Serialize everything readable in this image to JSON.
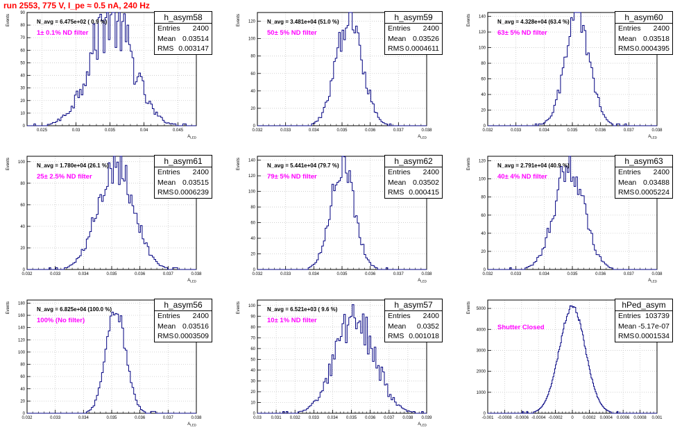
{
  "title": "run 2553,   775 V, I_pe ≈ 0.5 nA, 240 Hz",
  "colors": {
    "line": "#000080",
    "grid": "#c8c8c8",
    "label": "#ff00ff",
    "title": "#ff0000"
  },
  "stats_labels": {
    "entries": "Entries",
    "mean": "Mean",
    "rms": "RMS"
  },
  "chart_data": [
    {
      "type": "histogram",
      "title": "h_asym58",
      "n_avg": "N_avg = 6.475e+02 ( 0.9 %)",
      "label": "1± 0.1% ND filter",
      "entries": "2400",
      "mean": "0.03514",
      "rms": "0.003147",
      "ylabel": "Events",
      "xlabel": "A_LED",
      "xlim": [
        0.0228,
        0.0477
      ],
      "ylim": [
        0,
        90
      ],
      "xticks": [
        "0.025",
        "0.03",
        "0.035",
        "0.04",
        "0.045"
      ],
      "yticks": [
        "0",
        "10",
        "20",
        "30",
        "40",
        "50",
        "60",
        "70",
        "80",
        "90"
      ],
      "xtick_values": [
        0.025,
        0.03,
        0.035,
        0.04,
        0.045
      ],
      "ytick_values": [
        0,
        10,
        20,
        30,
        40,
        50,
        60,
        70,
        80,
        90
      ],
      "peak": 86,
      "center": 0.03514,
      "sigma": 0.003147,
      "bins": 100,
      "noise": 0.3
    },
    {
      "type": "histogram",
      "title": "h_asym59",
      "n_avg": "N_avg = 3.481e+04 (51.0 %)",
      "label": "50± 5% ND filter",
      "entries": "2400",
      "mean": "0.03526",
      "rms": "0.0004611",
      "ylabel": "Events",
      "xlabel": "A_LED",
      "xlim": [
        0.032,
        0.038
      ],
      "ylim": [
        0,
        130
      ],
      "xticks": [
        "0.032",
        "0.033",
        "0.034",
        "0.035",
        "0.036",
        "0.037",
        "0.038"
      ],
      "yticks": [
        "0",
        "20",
        "40",
        "60",
        "80",
        "100",
        "120"
      ],
      "xtick_values": [
        0.032,
        0.033,
        0.034,
        0.035,
        0.036,
        0.037,
        0.038
      ],
      "ytick_values": [
        0,
        20,
        40,
        60,
        80,
        100,
        120
      ],
      "peak": 124,
      "center": 0.03526,
      "sigma": 0.0004611,
      "bins": 100,
      "noise": 0.18
    },
    {
      "type": "histogram",
      "title": "h_asym60",
      "n_avg": "N_avg = 4.328e+04 (63.4 %)",
      "label": "63± 5% ND filter",
      "entries": "2400",
      "mean": "0.03518",
      "rms": "0.0004395",
      "ylabel": "Events",
      "xlabel": "A_LED",
      "xlim": [
        0.032,
        0.038
      ],
      "ylim": [
        0,
        145
      ],
      "xticks": [
        "0.032",
        "0.033",
        "0.034",
        "0.035",
        "0.036",
        "0.037",
        "0.038"
      ],
      "yticks": [
        "0",
        "20",
        "40",
        "60",
        "80",
        "100",
        "120",
        "140"
      ],
      "xtick_values": [
        0.032,
        0.033,
        0.034,
        0.035,
        0.036,
        0.037,
        0.038
      ],
      "ytick_values": [
        0,
        20,
        40,
        60,
        80,
        100,
        120,
        140
      ],
      "peak": 138,
      "center": 0.03518,
      "sigma": 0.0004395,
      "bins": 100,
      "noise": 0.16
    },
    {
      "type": "histogram",
      "title": "h_asym61",
      "n_avg": "N_avg = 1.780e+04 (26.1 %)",
      "label": "25± 2.5% ND filter",
      "entries": "2400",
      "mean": "0.03515",
      "rms": "0.0006239",
      "ylabel": "Events",
      "xlabel": "A_LED",
      "xlim": [
        0.032,
        0.038
      ],
      "ylim": [
        0,
        105
      ],
      "xticks": [
        "0.032",
        "0.033",
        "0.034",
        "0.035",
        "0.036",
        "0.037",
        "0.038"
      ],
      "yticks": [
        "0",
        "20",
        "40",
        "60",
        "80",
        "100"
      ],
      "xtick_values": [
        0.032,
        0.033,
        0.034,
        0.035,
        0.036,
        0.037,
        0.038
      ],
      "ytick_values": [
        0,
        20,
        40,
        60,
        80,
        100
      ],
      "peak": 100,
      "center": 0.03515,
      "sigma": 0.0006239,
      "bins": 100,
      "noise": 0.2
    },
    {
      "type": "histogram",
      "title": "h_asym62",
      "n_avg": "N_avg = 5.441e+04 (79.7 %)",
      "label": "79± 5% ND filter",
      "entries": "2400",
      "mean": "0.03502",
      "rms": "0.000415",
      "ylabel": "Events",
      "xlabel": "A_LED",
      "xlim": [
        0.032,
        0.038
      ],
      "ylim": [
        0,
        145
      ],
      "xticks": [
        "0.032",
        "0.033",
        "0.034",
        "0.035",
        "0.036",
        "0.037",
        "0.038"
      ],
      "yticks": [
        "0",
        "20",
        "40",
        "60",
        "80",
        "100",
        "120",
        "140"
      ],
      "xtick_values": [
        0.032,
        0.033,
        0.034,
        0.035,
        0.036,
        0.037,
        0.038
      ],
      "ytick_values": [
        0,
        20,
        40,
        60,
        80,
        100,
        120,
        140
      ],
      "peak": 136,
      "center": 0.03502,
      "sigma": 0.000415,
      "bins": 100,
      "noise": 0.16
    },
    {
      "type": "histogram",
      "title": "h_asym63",
      "n_avg": "N_avg = 2.791e+04 (40.9 %)",
      "label": "40± 4% ND filter",
      "entries": "2400",
      "mean": "0.03488",
      "rms": "0.0005224",
      "ylabel": "Events",
      "xlabel": "A_LED",
      "xlim": [
        0.032,
        0.038
      ],
      "ylim": [
        0,
        125
      ],
      "xticks": [
        "0.032",
        "0.033",
        "0.034",
        "0.035",
        "0.036",
        "0.037",
        "0.038"
      ],
      "yticks": [
        "0",
        "20",
        "40",
        "60",
        "80",
        "100",
        "120"
      ],
      "xtick_values": [
        0.032,
        0.033,
        0.034,
        0.035,
        0.036,
        0.037,
        0.038
      ],
      "ytick_values": [
        0,
        20,
        40,
        60,
        80,
        100,
        120
      ],
      "peak": 115,
      "center": 0.03488,
      "sigma": 0.0005224,
      "bins": 100,
      "noise": 0.18
    },
    {
      "type": "histogram",
      "title": "h_asym56",
      "n_avg": "N_avg = 6.825e+04 (100.0 %)",
      "label": "100% (No filter)",
      "entries": "2400",
      "mean": "0.03516",
      "rms": "0.0003509",
      "ylabel": "Events",
      "xlabel": "A_LED",
      "xlim": [
        0.032,
        0.038
      ],
      "ylim": [
        0,
        185
      ],
      "xticks": [
        "0.032",
        "0.033",
        "0.034",
        "0.035",
        "0.036",
        "0.037",
        "0.038"
      ],
      "yticks": [
        "0",
        "20",
        "40",
        "60",
        "80",
        "100",
        "120",
        "140",
        "160",
        "180"
      ],
      "xtick_values": [
        0.032,
        0.033,
        0.034,
        0.035,
        0.036,
        0.037,
        0.038
      ],
      "ytick_values": [
        0,
        20,
        40,
        60,
        80,
        100,
        120,
        140,
        160,
        180
      ],
      "peak": 168,
      "center": 0.03516,
      "sigma": 0.0003509,
      "bins": 100,
      "noise": 0.12
    },
    {
      "type": "histogram",
      "title": "h_asym57",
      "n_avg": "N_avg = 6.521e+03 ( 9.6 %)",
      "label": "10± 1% ND filter",
      "entries": "2400",
      "mean": "0.0352",
      "rms": "0.001018",
      "ylabel": "Events",
      "xlabel": "A_LED",
      "xlim": [
        0.03,
        0.039
      ],
      "ylim": [
        0,
        105
      ],
      "xticks": [
        "0.03",
        "0.031",
        "0.032",
        "0.033",
        "0.034",
        "0.035",
        "0.036",
        "0.037",
        "0.038",
        "0.039"
      ],
      "yticks": [
        "0",
        "10",
        "20",
        "30",
        "40",
        "50",
        "60",
        "70",
        "80",
        "90",
        "100"
      ],
      "xtick_values": [
        0.03,
        0.031,
        0.032,
        0.033,
        0.034,
        0.035,
        0.036,
        0.037,
        0.038,
        0.039
      ],
      "ytick_values": [
        0,
        10,
        20,
        30,
        40,
        50,
        60,
        70,
        80,
        90,
        100
      ],
      "peak": 92,
      "center": 0.0352,
      "sigma": 0.001018,
      "bins": 100,
      "noise": 0.25
    },
    {
      "type": "histogram",
      "title": "hPed_asym",
      "n_avg": "",
      "label": "Shutter Closed",
      "entries": "103739",
      "mean": "-5.17e-07",
      "rms": "0.0001534",
      "ylabel": "Events",
      "xlabel": "",
      "xlim": [
        -0.001,
        0.001
      ],
      "ylim": [
        0,
        5400
      ],
      "xticks": [
        "-0.001",
        "-0.0008",
        "-0.0006",
        "-0.0004",
        "-0.0002",
        "0",
        "0.0002",
        "0.0004",
        "0.0006",
        "0.0008",
        "0.001"
      ],
      "yticks": [
        "0",
        "1000",
        "2000",
        "3000",
        "4000",
        "5000"
      ],
      "xtick_values": [
        -0.001,
        -0.0008,
        -0.0006,
        -0.0004,
        -0.0002,
        0,
        0.0002,
        0.0004,
        0.0006,
        0.0008,
        0.001
      ],
      "ytick_values": [
        0,
        1000,
        2000,
        3000,
        4000,
        5000
      ],
      "peak": 5100,
      "center": 0,
      "sigma": 0.0001534,
      "bins": 200,
      "noise": 0.03
    }
  ]
}
